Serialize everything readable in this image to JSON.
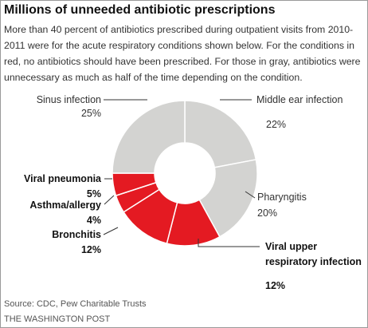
{
  "title": "Millions of unneeded antibiotic prescriptions",
  "subtitle": "More than 40 percent of antibiotics prescribed during outpatient visits from 2010-2011 were for the acute respiratory conditions shown below. For the conditions in red, no antibiotics should have been prescribed. For those in gray, antibiotics were unnecessary as much as half of the time depending on the condition.",
  "source": "Source: CDC, Pew Charitable Trusts",
  "credit": "THE WASHINGTON POST",
  "colors": {
    "red": "#e41a22",
    "gray": "#d3d3d1",
    "separator": "#ffffff",
    "leader": "#333333"
  },
  "chart_data": {
    "type": "pie",
    "donut": true,
    "slices": [
      {
        "label": "Middle ear infection",
        "value": 22,
        "display": "22%",
        "group": "gray"
      },
      {
        "label": "Pharyngitis",
        "value": 20,
        "display": "20%",
        "group": "gray"
      },
      {
        "label": "Viral upper respiratory infection",
        "label_lines": [
          "Viral upper",
          "respiratory infection"
        ],
        "value": 12,
        "display": "12%",
        "group": "red"
      },
      {
        "label": "Bronchitis",
        "value": 12,
        "display": "12%",
        "group": "red"
      },
      {
        "label": "Asthma/allergy",
        "value": 4,
        "display": "4%",
        "group": "red"
      },
      {
        "label": "Viral pneumonia",
        "value": 5,
        "display": "5%",
        "group": "red"
      },
      {
        "label": "Sinus infection",
        "value": 25,
        "display": "25%",
        "group": "gray"
      }
    ]
  }
}
